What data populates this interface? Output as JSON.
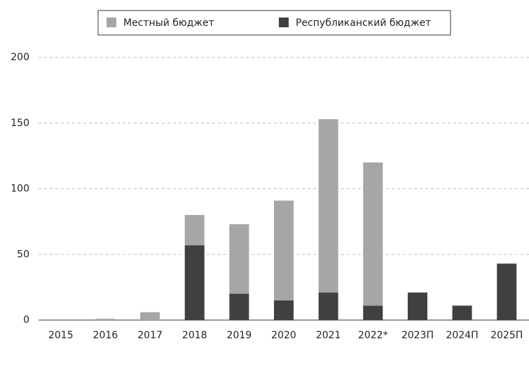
{
  "chart_data": {
    "type": "stacked_bar",
    "categories": [
      "2015",
      "2016",
      "2017",
      "2018",
      "2019",
      "2020",
      "2021",
      "2022*",
      "2023П",
      "2024П",
      "2025П"
    ],
    "series": [
      {
        "name": "Республиканский бюджет",
        "color": "#404040",
        "values": [
          0,
          0,
          0,
          57,
          20,
          15,
          21,
          11,
          21,
          11,
          43
        ]
      },
      {
        "name": "Местный бюджет",
        "color": "#a6a6a6",
        "values": [
          0,
          1,
          6,
          23,
          53,
          76,
          132,
          109,
          0,
          0,
          0
        ]
      }
    ],
    "ylim": [
      0,
      200
    ],
    "yticks": [
      0,
      50,
      100,
      150,
      200
    ],
    "grid": true,
    "legend": "top"
  }
}
